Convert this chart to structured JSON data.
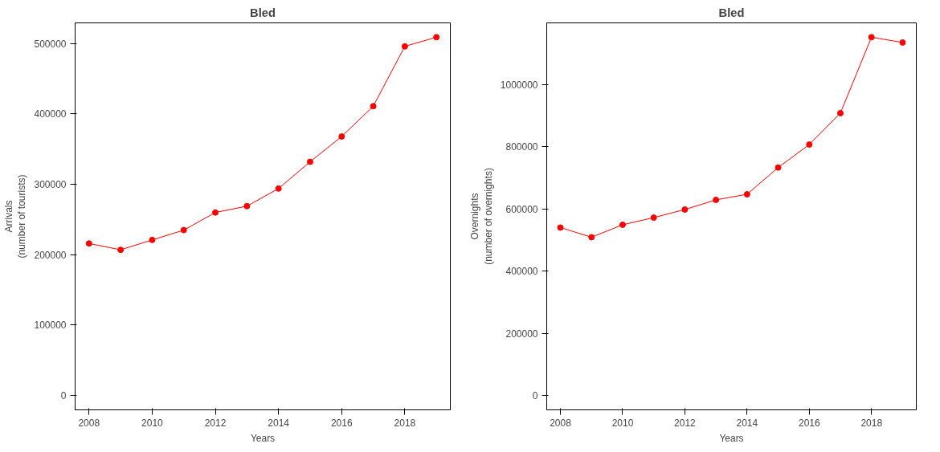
{
  "chart_data": [
    {
      "type": "line",
      "title": "Bled",
      "xlabel": "Years",
      "ylabel": "Arrivals\n(number of tourists)",
      "x": [
        2008,
        2009,
        2010,
        2011,
        2012,
        2013,
        2014,
        2015,
        2016,
        2017,
        2018,
        2019
      ],
      "series": [
        {
          "color": "#ff0000",
          "values": [
            216000,
            207000,
            221000,
            235000,
            260000,
            269000,
            294000,
            332000,
            368000,
            411000,
            496000,
            509000
          ]
        }
      ],
      "xlim": [
        2007.56,
        2019.44
      ],
      "xticks": [
        2008,
        2010,
        2012,
        2014,
        2016,
        2018
      ],
      "ylim": [
        -20360,
        529360
      ],
      "yticks": [
        0,
        100000,
        200000,
        300000,
        400000,
        500000
      ],
      "marker": "circle",
      "line_style": "solid",
      "grid": false
    },
    {
      "type": "line",
      "title": "Bled",
      "xlabel": "Years",
      "ylabel": "Overnights\n(number of overnights)",
      "x": [
        2008,
        2009,
        2010,
        2011,
        2012,
        2013,
        2014,
        2015,
        2016,
        2017,
        2018,
        2019
      ],
      "series": [
        {
          "color": "#ff0000",
          "values": [
            540000,
            509000,
            549000,
            572000,
            598000,
            629000,
            647000,
            733000,
            807000,
            908000,
            1152000,
            1135000
          ]
        }
      ],
      "xlim": [
        2007.56,
        2019.44
      ],
      "xticks": [
        2008,
        2010,
        2012,
        2014,
        2016,
        2018
      ],
      "ylim": [
        -46080,
        1198080
      ],
      "yticks": [
        0,
        200000,
        400000,
        600000,
        800000,
        1000000
      ],
      "marker": "circle",
      "line_style": "solid",
      "grid": false
    }
  ]
}
